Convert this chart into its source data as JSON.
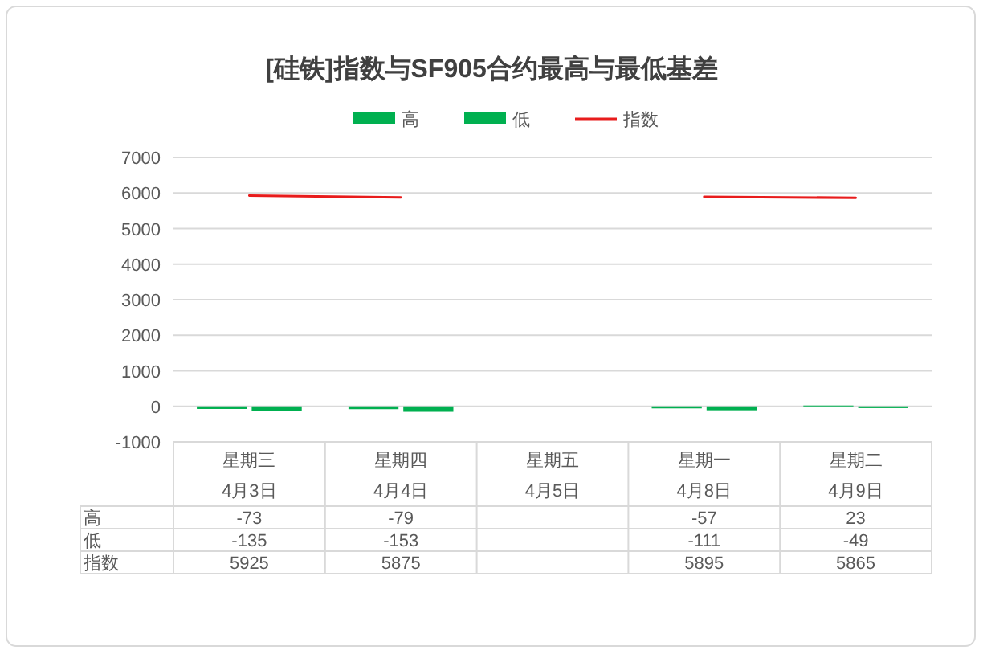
{
  "chart_data": {
    "type": "bar",
    "title": "[硅铁]指数与SF905合约最高与最低基差",
    "categories": [
      "星期三\n4月3日",
      "星期四\n4月4日",
      "星期五\n4月5日",
      "星期一\n4月8日",
      "星期二\n4月9日"
    ],
    "series": [
      {
        "name": "高",
        "color": "#00b050",
        "values": [
          -73,
          -79,
          null,
          -57,
          23
        ]
      },
      {
        "name": "低",
        "color": "#00b050",
        "values": [
          -135,
          -153,
          null,
          -111,
          -49
        ]
      },
      {
        "name": "指数",
        "type": "line",
        "color": "#e81c1c",
        "values": [
          5925,
          5875,
          null,
          5895,
          5865
        ]
      }
    ],
    "ylim": [
      -1000,
      7000
    ],
    "yticks": [
      -1000,
      0,
      1000,
      2000,
      3000,
      4000,
      5000,
      6000,
      7000
    ],
    "grid": "y",
    "legend": "top",
    "data_labels": true
  }
}
